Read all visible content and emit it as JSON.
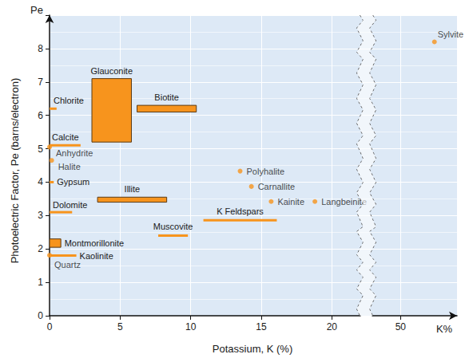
{
  "chart_data": {
    "type": "scatter",
    "xlabel": "Potassium, K (%)",
    "ylabel": "Photoelectric Factor, Pe (barns/electron)",
    "x_axis_name": "K%",
    "y_axis_name": "Pe",
    "xlim": [
      0,
      54
    ],
    "xticks": [
      0,
      5,
      10,
      15,
      20,
      50
    ],
    "xbreak": [
      22,
      48
    ],
    "ylim": [
      0,
      9
    ],
    "yticks": [
      0,
      1,
      2,
      3,
      4,
      5,
      6,
      7,
      8
    ],
    "grid": true,
    "color": "#f7941d",
    "series": [
      {
        "name": "Glauconite",
        "type": "box",
        "x": [
          3.0,
          5.8
        ],
        "y": [
          5.2,
          7.1
        ]
      },
      {
        "name": "Biotite",
        "type": "box",
        "x": [
          6.2,
          10.4
        ],
        "y": [
          6.1,
          6.3
        ]
      },
      {
        "name": "Illite",
        "type": "box",
        "x": [
          3.4,
          8.3
        ],
        "y": [
          3.4,
          3.55
        ]
      },
      {
        "name": "Montmorillonite",
        "type": "box",
        "x": [
          0,
          0.8
        ],
        "y": [
          2.05,
          2.3
        ]
      },
      {
        "name": "Chlorite",
        "type": "range",
        "x": [
          0,
          0.5
        ],
        "y": 6.2
      },
      {
        "name": "Calcite",
        "type": "range",
        "x": [
          0,
          2.2
        ],
        "y": 5.1
      },
      {
        "name": "Gypsum",
        "type": "range",
        "x": [
          0,
          0.3
        ],
        "y": 4.0
      },
      {
        "name": "Dolomite",
        "type": "range",
        "x": [
          0,
          1.6
        ],
        "y": 3.1
      },
      {
        "name": "Kaolinite",
        "type": "range",
        "x": [
          0,
          1.9
        ],
        "y": 1.8
      },
      {
        "name": "Muscovite",
        "type": "range",
        "x": [
          7.7,
          9.8
        ],
        "y": 2.4
      },
      {
        "name": "K Feldspars",
        "type": "range",
        "x": [
          10.9,
          16.1
        ],
        "y": 2.86
      },
      {
        "name": "Anhydrite",
        "type": "point",
        "x": 0,
        "y": 5.05
      },
      {
        "name": "Halite",
        "type": "point",
        "x": 0.15,
        "y": 4.65
      },
      {
        "name": "Quartz",
        "type": "point",
        "x": 0,
        "y": 1.81
      },
      {
        "name": "Polyhalite",
        "type": "point",
        "x": 13.5,
        "y": 4.33
      },
      {
        "name": "Carnallite",
        "type": "point",
        "x": 14.3,
        "y": 3.87
      },
      {
        "name": "Kainite",
        "type": "point",
        "x": 15.7,
        "y": 3.42
      },
      {
        "name": "Langbeinite",
        "type": "point",
        "x": 18.8,
        "y": 3.42
      },
      {
        "name": "Sylvite",
        "type": "point",
        "x": 52.4,
        "y": 8.2
      }
    ]
  }
}
